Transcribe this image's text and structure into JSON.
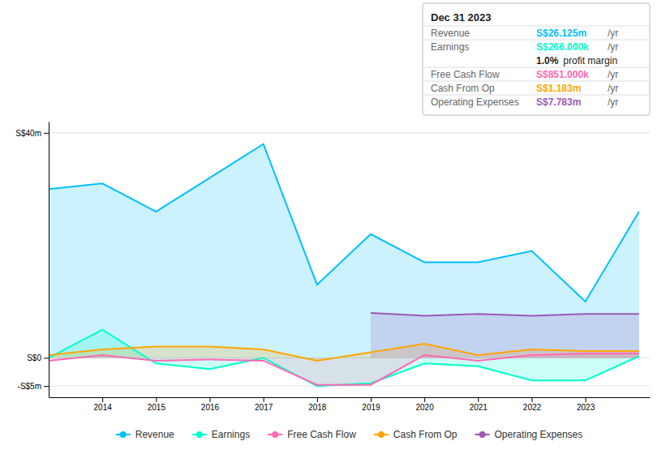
{
  "chart_data": {
    "type": "area",
    "x": [
      2013,
      2014,
      2015,
      2016,
      2017,
      2018,
      2019,
      2020,
      2021,
      2022,
      2023,
      2024
    ],
    "xlim": [
      2013,
      2024.2
    ],
    "xticks": [
      2014,
      2015,
      2016,
      2017,
      2018,
      2019,
      2020,
      2021,
      2022,
      2023
    ],
    "ylim": [
      -7,
      42
    ],
    "yticks": [
      {
        "value": -5,
        "label": "-S$5m"
      },
      {
        "value": 0,
        "label": "S$0"
      },
      {
        "value": 40,
        "label": "S$40m"
      }
    ],
    "grid": true,
    "legend": "bottom",
    "series": [
      {
        "name": "Revenue",
        "color": "#00bfff",
        "values": [
          30,
          31,
          26,
          32,
          38,
          13,
          22,
          17,
          17,
          19,
          10,
          26
        ]
      },
      {
        "name": "Earnings",
        "color": "#00ffcc",
        "values": [
          0,
          5,
          -1,
          -2,
          0,
          -5,
          -4.5,
          -1,
          -1.5,
          -4,
          -4,
          0.3
        ]
      },
      {
        "name": "Free Cash Flow",
        "color": "#ff69b4",
        "values": [
          -0.5,
          0.5,
          -0.5,
          -0.3,
          -0.5,
          -4.8,
          -4.8,
          0.5,
          -0.5,
          0.5,
          0.8,
          0.8
        ]
      },
      {
        "name": "Cash From Op",
        "color": "#ffa500",
        "values": [
          0.5,
          1.5,
          2,
          2,
          1.5,
          -0.5,
          1,
          2.5,
          0.5,
          1.5,
          1.2,
          1.2
        ]
      },
      {
        "name": "Operating Expenses",
        "color": "#9b59b6",
        "values": [
          null,
          null,
          null,
          null,
          null,
          null,
          8,
          7.5,
          7.8,
          7.5,
          7.8,
          7.8
        ]
      }
    ],
    "annotations": [
      {
        "text": "Dec 31 2023"
      },
      {
        "label": "Revenue",
        "value": "S$26.125m",
        "unit": "/yr",
        "color": "#00bfff"
      },
      {
        "label": "Earnings",
        "value": "S$266.000k",
        "unit": "/yr",
        "color": "#00ffcc"
      },
      {
        "value": "1.0%",
        "note": "profit margin"
      },
      {
        "label": "Free Cash Flow",
        "value": "S$851.000k",
        "unit": "/yr",
        "color": "#ff69b4"
      },
      {
        "label": "Cash From Op",
        "value": "S$1.183m",
        "unit": "/yr",
        "color": "#ffa500"
      },
      {
        "label": "Operating Expenses",
        "value": "S$7.783m",
        "unit": "/yr",
        "color": "#9b59b6"
      }
    ]
  }
}
